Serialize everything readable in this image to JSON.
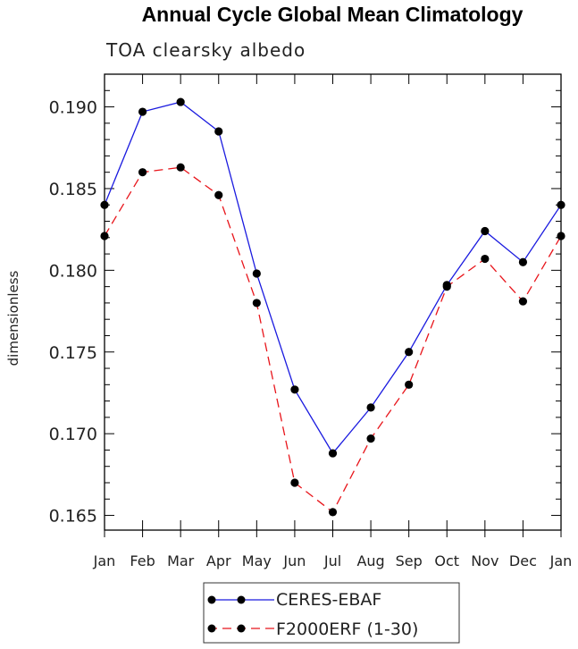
{
  "chart_data": {
    "type": "line",
    "title": "Annual Cycle Global Mean Climatology",
    "subtitle": "TOA clearsky albedo",
    "xlabel": "",
    "ylabel": "dimensionless",
    "categories": [
      "Jan",
      "Feb",
      "Mar",
      "Apr",
      "May",
      "Jun",
      "Jul",
      "Aug",
      "Sep",
      "Oct",
      "Nov",
      "Dec",
      "Jan"
    ],
    "ylim": [
      0.1641,
      0.192
    ],
    "yticks": [
      0.165,
      0.17,
      0.175,
      0.18,
      0.185,
      0.19
    ],
    "ytick_labels": [
      "0.165",
      "0.170",
      "0.175",
      "0.180",
      "0.185",
      "0.190"
    ],
    "series": [
      {
        "name": "CERES-EBAF",
        "color": "#1a1adf",
        "dash": "solid",
        "values": [
          0.184,
          0.1897,
          0.1903,
          0.1885,
          0.1798,
          0.1727,
          0.1688,
          0.1716,
          0.175,
          0.1791,
          0.1824,
          0.1805,
          0.184
        ]
      },
      {
        "name": "F2000ERF (1-30)",
        "color": "#e8141a",
        "dash": "dashed",
        "values": [
          0.1821,
          0.186,
          0.1863,
          0.1846,
          0.178,
          0.167,
          0.1652,
          0.1697,
          0.173,
          0.179,
          0.1807,
          0.1781,
          0.1821
        ]
      }
    ],
    "legend_position": "bottom-center"
  }
}
